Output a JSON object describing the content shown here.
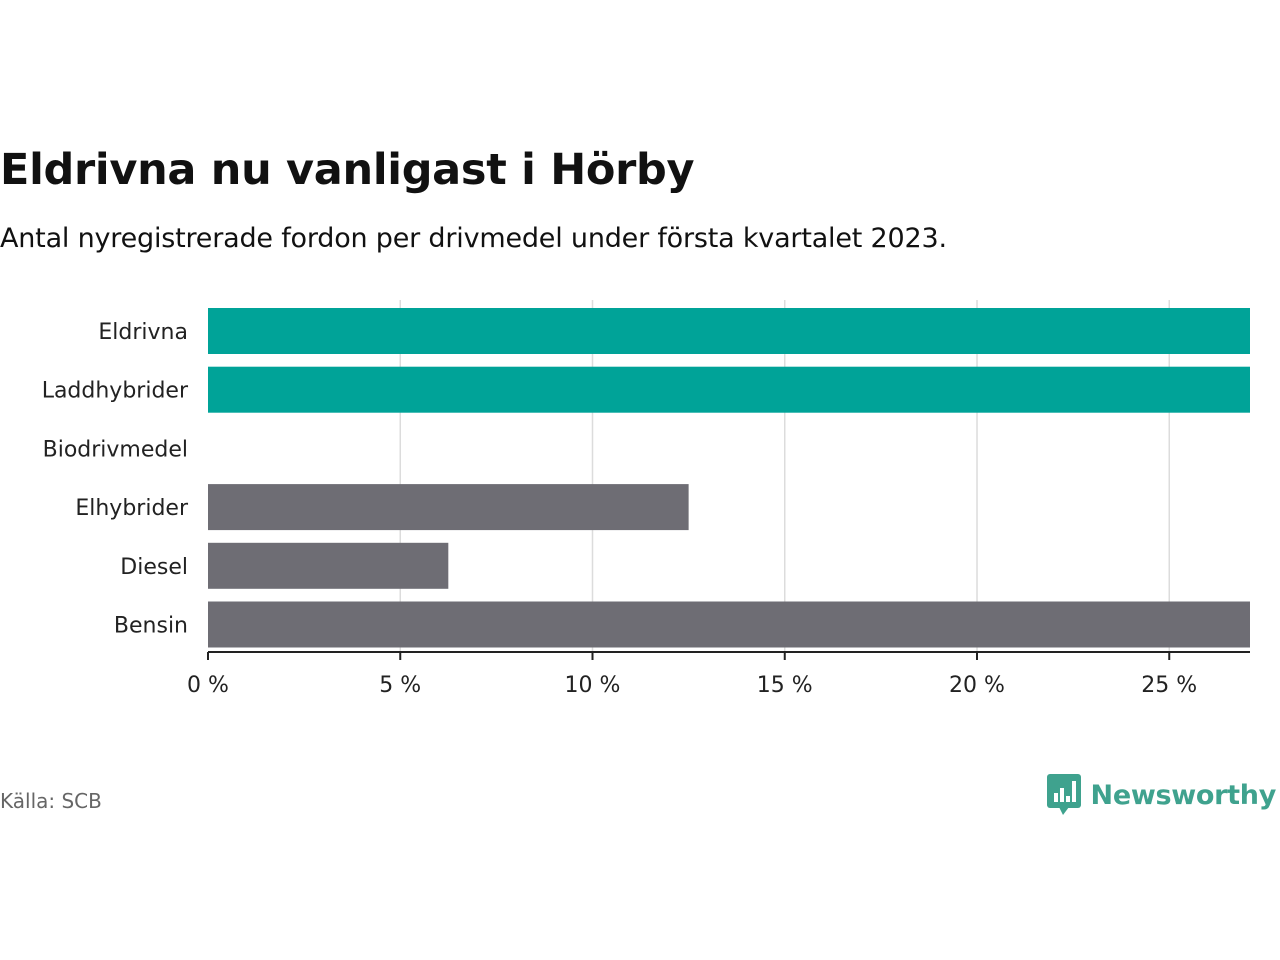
{
  "title": "Eldrivna nu vanligast i Hörby",
  "subtitle": "Antal nyregistrerade fordon per drivmedel under första kvartalet 2023.",
  "source": "Källa: SCB",
  "brand": {
    "name": "Newsworthy",
    "logo_icon": "bar-chart-speech-bubble-icon",
    "color": "#3fa28e"
  },
  "chart_data": {
    "type": "bar",
    "orientation": "horizontal",
    "categories": [
      "Eldrivna",
      "Laddhybrider",
      "Biodrivmedel",
      "Elhybrider",
      "Diesel",
      "Bensin"
    ],
    "values": [
      27.1,
      27.1,
      0,
      12.5,
      6.25,
      27.1
    ],
    "colors": [
      "#00a398",
      "#00a398",
      "#00a398",
      "#6e6d74",
      "#6e6d74",
      "#6e6d74"
    ],
    "xlim": [
      0,
      27.1
    ],
    "ticks": [
      0,
      5,
      10,
      15,
      20,
      25
    ],
    "tick_labels": [
      "0 %",
      "5 %",
      "10 %",
      "15 %",
      "20 %",
      "25 %"
    ],
    "grid": true,
    "title": "Eldrivna nu vanligast i Hörby",
    "subtitle": "Antal nyregistrerade fordon per drivmedel under första kvartalet 2023.",
    "xlabel": "",
    "ylabel": ""
  }
}
